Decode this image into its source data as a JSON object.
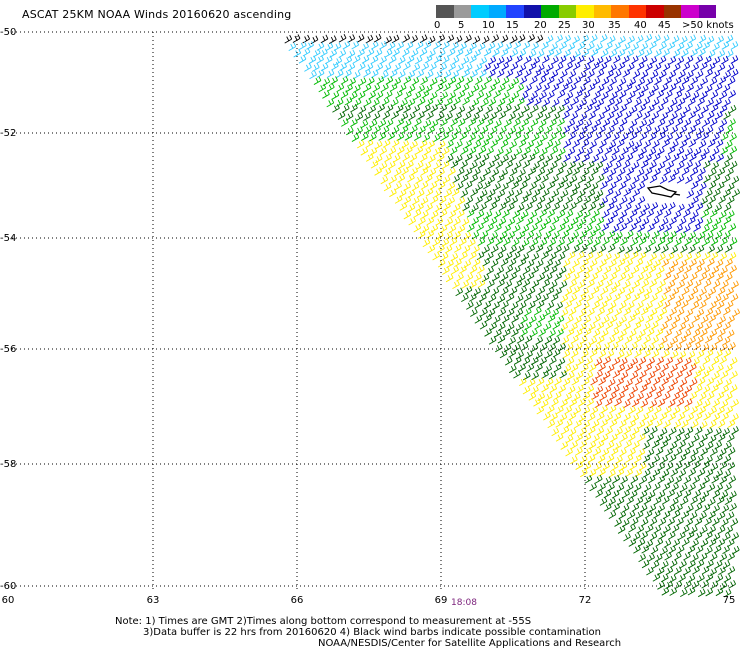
{
  "title": "ASCAT 25KM NOAA Winds 20160620 ascending",
  "legend": {
    "labels": [
      "0",
      "5",
      "10",
      "15",
      "20",
      "25",
      "30",
      "35",
      "40",
      "45",
      ">50 knots"
    ],
    "colors": [
      "#555555",
      "#a0a0a0",
      "#00ccff",
      "#0088ff",
      "#2222cc",
      "#00aa00",
      "#7acc00",
      "#ffff00",
      "#ffcc00",
      "#ff8800",
      "#ff4400",
      "#dd0000",
      "#993300",
      "#ff00ff",
      "#9900cc"
    ]
  },
  "axes": {
    "lat_labels": [
      "-50",
      "-52",
      "-54",
      "-56",
      "-58",
      "-60"
    ],
    "lon_labels": [
      "60",
      "63",
      "66",
      "69",
      "72",
      "75"
    ]
  },
  "time_label": "18:08",
  "notes": {
    "line1": "Note: 1) Times are GMT 2)Times along bottom correspond to measurement at -55S",
    "line2": "3)Data buffer is 22 hrs from 20160620 4) Black wind barbs indicate possible contamination",
    "line3": "NOAA/NESDIS/Center for Satellite Applications and Research"
  },
  "barb_colors": {
    "contaminated": "#000000",
    "light": "#33ccff",
    "blue": "#0000cc",
    "green_bright": "#00bb00",
    "green_dark": "#006600",
    "yellow": "#ffee00",
    "orange": "#ff9900",
    "red_orange": "#ee4400"
  }
}
